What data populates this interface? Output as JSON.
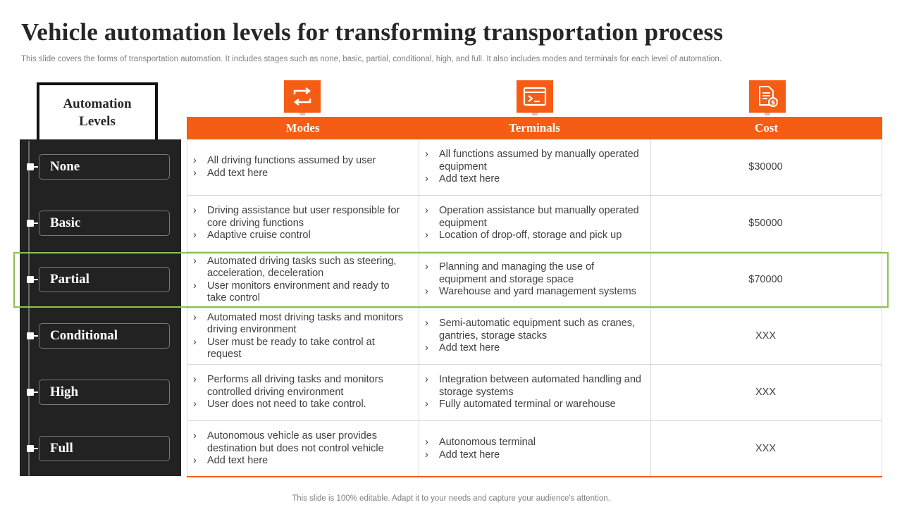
{
  "title": "Vehicle automation levels for transforming transportation process",
  "subtitle": "This slide covers the forms of transportation automation. It includes stages such as none, basic, partial, conditional, high, and full. It also includes modes and terminals for each level of automation.",
  "levels_header": "Automation Levels",
  "columns": [
    {
      "label": "Modes",
      "icon": "swap-arrows-icon"
    },
    {
      "label": "Terminals",
      "icon": "terminal-window-icon"
    },
    {
      "label": "Cost",
      "icon": "document-dollar-icon"
    }
  ],
  "rows": [
    {
      "level": "None",
      "modes": [
        "All driving functions assumed by user",
        "Add text here"
      ],
      "terminals": [
        "All functions assumed by manually operated equipment",
        "Add text here"
      ],
      "cost": "$30000"
    },
    {
      "level": "Basic",
      "modes": [
        "Driving assistance but user responsible for core driving functions",
        "Adaptive cruise control"
      ],
      "terminals": [
        "Operation assistance but manually operated equipment",
        "Location of drop-off, storage and pick up"
      ],
      "cost": "$50000"
    },
    {
      "level": "Partial",
      "modes": [
        "Automated driving tasks such as steering, acceleration, deceleration",
        "User monitors environment and ready to take control"
      ],
      "terminals": [
        "Planning and managing the use of equipment and storage space",
        "Warehouse and yard management systems"
      ],
      "cost": "$70000"
    },
    {
      "level": "Conditional",
      "modes": [
        "Automated most driving tasks and monitors driving environment",
        "User must be ready to take control at request"
      ],
      "terminals": [
        "Semi-automatic equipment such as cranes, gantries, storage stacks",
        "Add text here"
      ],
      "cost": "XXX"
    },
    {
      "level": "High",
      "modes": [
        "Performs all driving tasks and monitors controlled driving environment",
        "User does not need to take control."
      ],
      "terminals": [
        "Integration between automated handling and storage systems",
        "Fully automated terminal or warehouse"
      ],
      "cost": "XXX"
    },
    {
      "level": "Full",
      "modes": [
        "Autonomous vehicle as user provides destination but does not control vehicle",
        "Add text here"
      ],
      "terminals": [
        "Autonomous terminal",
        "Add text here"
      ],
      "cost": "XXX"
    }
  ],
  "bullet_glyph": "›",
  "footer": "This slide is 100% editable. Adapt it to your needs and capture your audience's attention.",
  "colors": {
    "accent": "#f55d14",
    "dark_panel": "#222222",
    "highlight": "#8cc152"
  }
}
